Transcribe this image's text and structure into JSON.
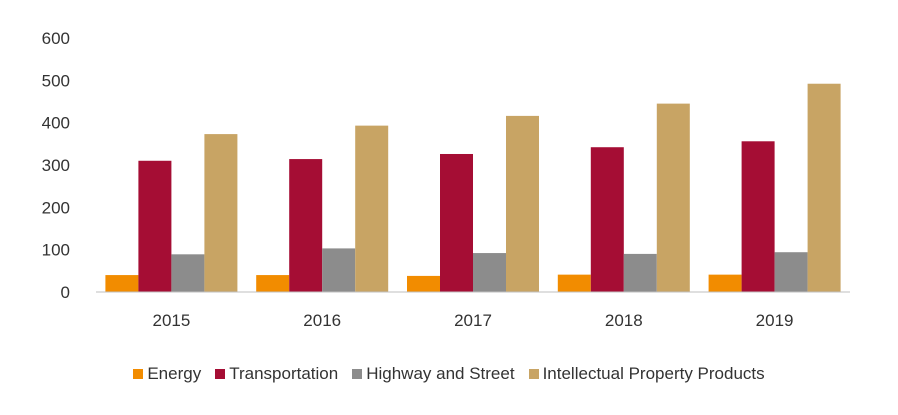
{
  "chart_data": {
    "type": "bar",
    "title": "",
    "xlabel": "",
    "ylabel": "",
    "categories": [
      "2015",
      "2016",
      "2017",
      "2018",
      "2019"
    ],
    "series": [
      {
        "name": "Energy",
        "color": "#F28C00",
        "values": [
          40,
          40,
          38,
          41,
          41
        ]
      },
      {
        "name": "Transportation",
        "color": "#A50D34",
        "values": [
          310,
          314,
          326,
          342,
          356
        ]
      },
      {
        "name": "Highway and Street",
        "color": "#8C8C8C",
        "values": [
          89,
          103,
          92,
          90,
          94
        ]
      },
      {
        "name": "Intellectual Property Products",
        "color": "#C8A464",
        "values": [
          373,
          393,
          416,
          445,
          492
        ]
      }
    ],
    "ylim": [
      0,
      600
    ],
    "yticks": [
      0,
      100,
      200,
      300,
      400,
      500,
      600
    ],
    "grid": false,
    "legend_position": "bottom"
  }
}
